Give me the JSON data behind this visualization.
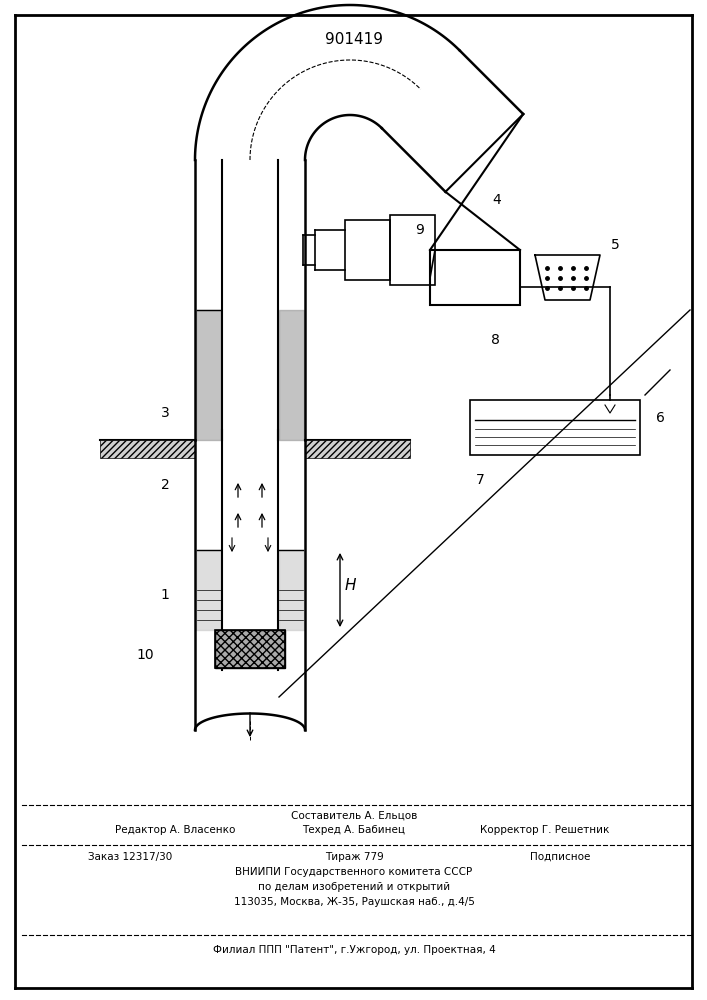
{
  "patent_number": "901419",
  "bg_color": "#ffffff",
  "line_color": "#000000",
  "footer_compose": "Составитель А. Ельцов",
  "footer_line1_left": "Редактор А. Власенко",
  "footer_line1_mid": "Техред А. Бабинец",
  "footer_line1_right": "Корректор Г. Решетник",
  "footer_line2_left": "Заказ 12317/30",
  "footer_line2_mid": "Тираж 779",
  "footer_line2_right": "Подписное",
  "footer_line3": "ВНИИПИ Государственного комитета СССР",
  "footer_line4": "по делам изобретений и открытий",
  "footer_line5": "113035, Москва, Ж-35, Раушская наб., д.4/5",
  "footer_line6": "Филиал ППП \"Патент\", г.Ужгород, ул. Проектная, 4",
  "fig_width": 7.07,
  "fig_height": 10.0
}
